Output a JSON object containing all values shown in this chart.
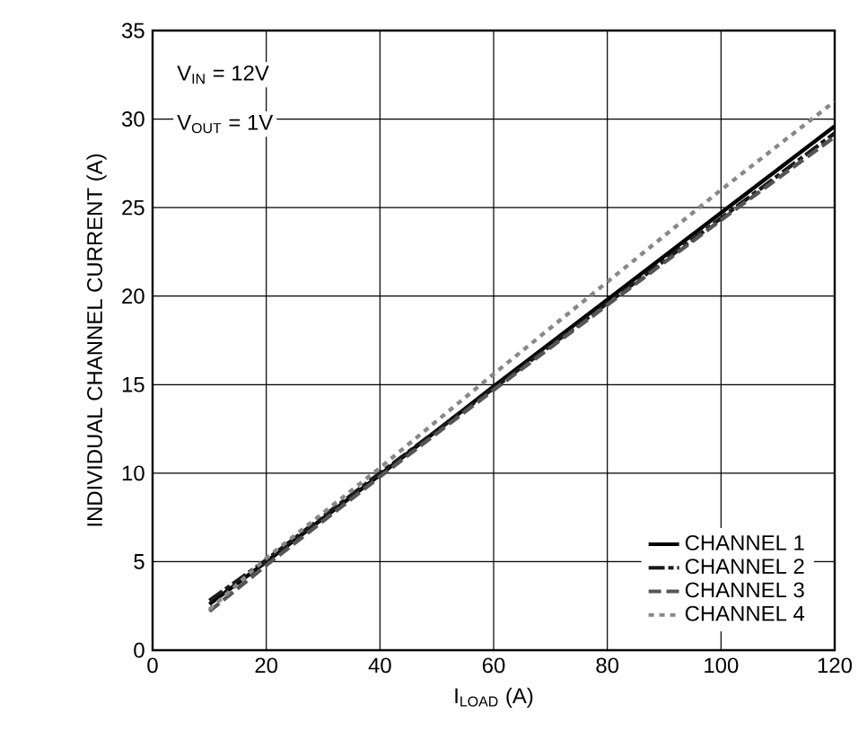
{
  "chart_data": {
    "type": "line",
    "xlabel": "I$_{LOAD}$ (A)",
    "ylabel": "INDIVIDUAL CHANNEL CURRENT (A)",
    "annotations": [
      "V$_{IN}$ = 12V",
      "V$_{OUT}$ = 1V"
    ],
    "x": [
      10,
      20,
      40,
      60,
      80,
      100,
      120
    ],
    "series": [
      {
        "name": "CHANNEL 1",
        "color": "#000000",
        "line_style": "solid",
        "values": [
          2.6,
          5.0,
          9.9,
          14.9,
          19.8,
          24.7,
          29.6
        ]
      },
      {
        "name": "CHANNEL 2",
        "color": "#1a1a1a",
        "line_style": "dashdot",
        "values": [
          2.8,
          5.1,
          10.0,
          14.8,
          19.6,
          24.4,
          29.2
        ]
      },
      {
        "name": "CHANNEL 3",
        "color": "#555555",
        "line_style": "dashed",
        "values": [
          2.2,
          4.8,
          9.8,
          14.7,
          19.5,
          24.3,
          29.0
        ]
      },
      {
        "name": "CHANNEL 4",
        "color": "#888888",
        "line_style": "dotted",
        "values": [
          2.3,
          5.2,
          10.3,
          15.6,
          20.8,
          26.0,
          31.0
        ]
      }
    ],
    "xlim": [
      0,
      120
    ],
    "xticks": [
      0,
      20,
      40,
      60,
      80,
      100,
      120
    ],
    "ylim": [
      0,
      35
    ],
    "yticks": [
      0,
      5,
      10,
      15,
      20,
      25,
      30,
      35
    ],
    "grid": true,
    "legend": "bottom right",
    "marker": "none"
  }
}
